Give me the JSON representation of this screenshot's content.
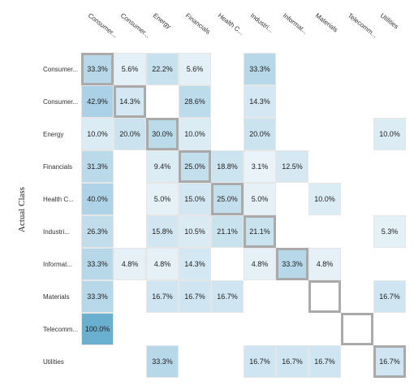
{
  "chart_data": {
    "type": "heatmap",
    "ylabel": "Actual Class",
    "columns": [
      "Consumer...",
      "Consumer...",
      "Energy",
      "Financials",
      "Health C...",
      "Industri...",
      "Informat...",
      "Materials",
      "Telecomm...",
      "Utilities"
    ],
    "rows": [
      "Consumer...",
      "Consumer...",
      "Energy",
      "Financials",
      "Health C...",
      "Industri...",
      "Informat...",
      "Materials",
      "Telecomm...",
      "Utilities"
    ],
    "values": [
      [
        33.3,
        5.6,
        22.2,
        5.6,
        null,
        33.3,
        null,
        null,
        null,
        null
      ],
      [
        42.9,
        14.3,
        null,
        28.6,
        null,
        14.3,
        null,
        null,
        null,
        null
      ],
      [
        10.0,
        20.0,
        30.0,
        10.0,
        null,
        20.0,
        null,
        null,
        null,
        10.0
      ],
      [
        31.3,
        null,
        9.4,
        25.0,
        18.8,
        3.1,
        12.5,
        null,
        null,
        null
      ],
      [
        40.0,
        null,
        5.0,
        15.0,
        25.0,
        5.0,
        null,
        10.0,
        null,
        null
      ],
      [
        26.3,
        null,
        15.8,
        10.5,
        21.1,
        21.1,
        null,
        null,
        null,
        5.3
      ],
      [
        33.3,
        4.8,
        4.8,
        14.3,
        null,
        4.8,
        33.3,
        4.8,
        null,
        null
      ],
      [
        33.3,
        null,
        16.7,
        16.7,
        16.7,
        null,
        null,
        null,
        null,
        16.7
      ],
      [
        100.0,
        null,
        null,
        null,
        null,
        null,
        null,
        null,
        null,
        null
      ],
      [
        null,
        null,
        33.3,
        null,
        null,
        16.7,
        16.7,
        16.7,
        null,
        16.7
      ]
    ],
    "value_format": "percent_1dp",
    "diagonal_highlight": true,
    "colors": {
      "low": "#f3f9fc",
      "high": "#6aaed0",
      "diagonal_border": "#aaaaaa",
      "cell_border": "#e6e6e6"
    }
  }
}
